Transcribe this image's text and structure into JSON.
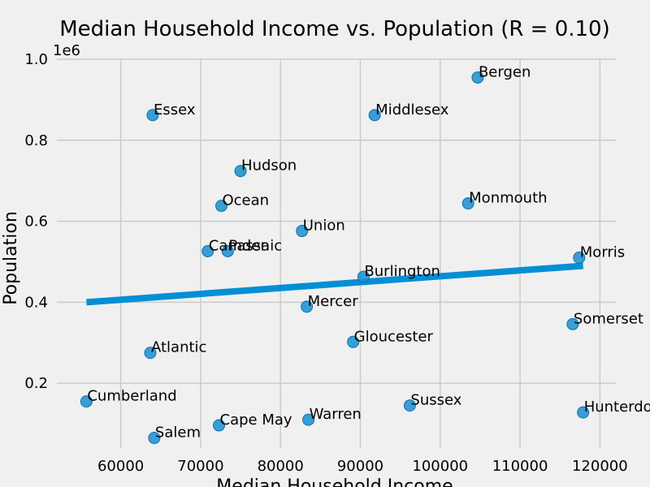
{
  "chart_data": {
    "type": "scatter",
    "title": "Median Household Income vs. Population (R = 0.10)",
    "xlabel": "Median Household Income",
    "ylabel": "Population",
    "y_multiplier_label": "1e6",
    "xlim": [
      52000,
      122000
    ],
    "ylim": [
      0.04,
      1.0
    ],
    "x_ticks": [
      60000,
      70000,
      80000,
      90000,
      100000,
      110000,
      120000
    ],
    "y_ticks": [
      0.2,
      0.4,
      0.6,
      0.8,
      1.0
    ],
    "y_tick_labels": [
      "0.2",
      "0.4",
      "0.6",
      "0.8",
      "1.0"
    ],
    "grid": true,
    "point_color": "#1a8fd1",
    "line_color": "#008fd5",
    "points": [
      {
        "label": "Bergen",
        "x": 104700,
        "y": 0.955
      },
      {
        "label": "Essex",
        "x": 64000,
        "y": 0.862
      },
      {
        "label": "Middlesex",
        "x": 91800,
        "y": 0.862
      },
      {
        "label": "Hudson",
        "x": 75000,
        "y": 0.724
      },
      {
        "label": "Ocean",
        "x": 72600,
        "y": 0.638
      },
      {
        "label": "Monmouth",
        "x": 103500,
        "y": 0.644
      },
      {
        "label": "Union",
        "x": 82700,
        "y": 0.576
      },
      {
        "label": "Camden",
        "x": 70900,
        "y": 0.526
      },
      {
        "label": "Passaic",
        "x": 73400,
        "y": 0.526
      },
      {
        "label": "Morris",
        "x": 117400,
        "y": 0.51
      },
      {
        "label": "Burlington",
        "x": 90400,
        "y": 0.463
      },
      {
        "label": "Mercer",
        "x": 83300,
        "y": 0.389
      },
      {
        "label": "Somerset",
        "x": 116600,
        "y": 0.346
      },
      {
        "label": "Gloucester",
        "x": 89100,
        "y": 0.302
      },
      {
        "label": "Atlantic",
        "x": 63700,
        "y": 0.275
      },
      {
        "label": "Cumberland",
        "x": 55700,
        "y": 0.155
      },
      {
        "label": "Sussex",
        "x": 96200,
        "y": 0.145
      },
      {
        "label": "Hunterdon",
        "x": 117900,
        "y": 0.128
      },
      {
        "label": "Warren",
        "x": 83500,
        "y": 0.11
      },
      {
        "label": "Cape May",
        "x": 72300,
        "y": 0.096
      },
      {
        "label": "Salem",
        "x": 64200,
        "y": 0.065
      }
    ],
    "trendline": {
      "x": [
        55700,
        117900
      ],
      "y": [
        0.4,
        0.49
      ]
    }
  }
}
